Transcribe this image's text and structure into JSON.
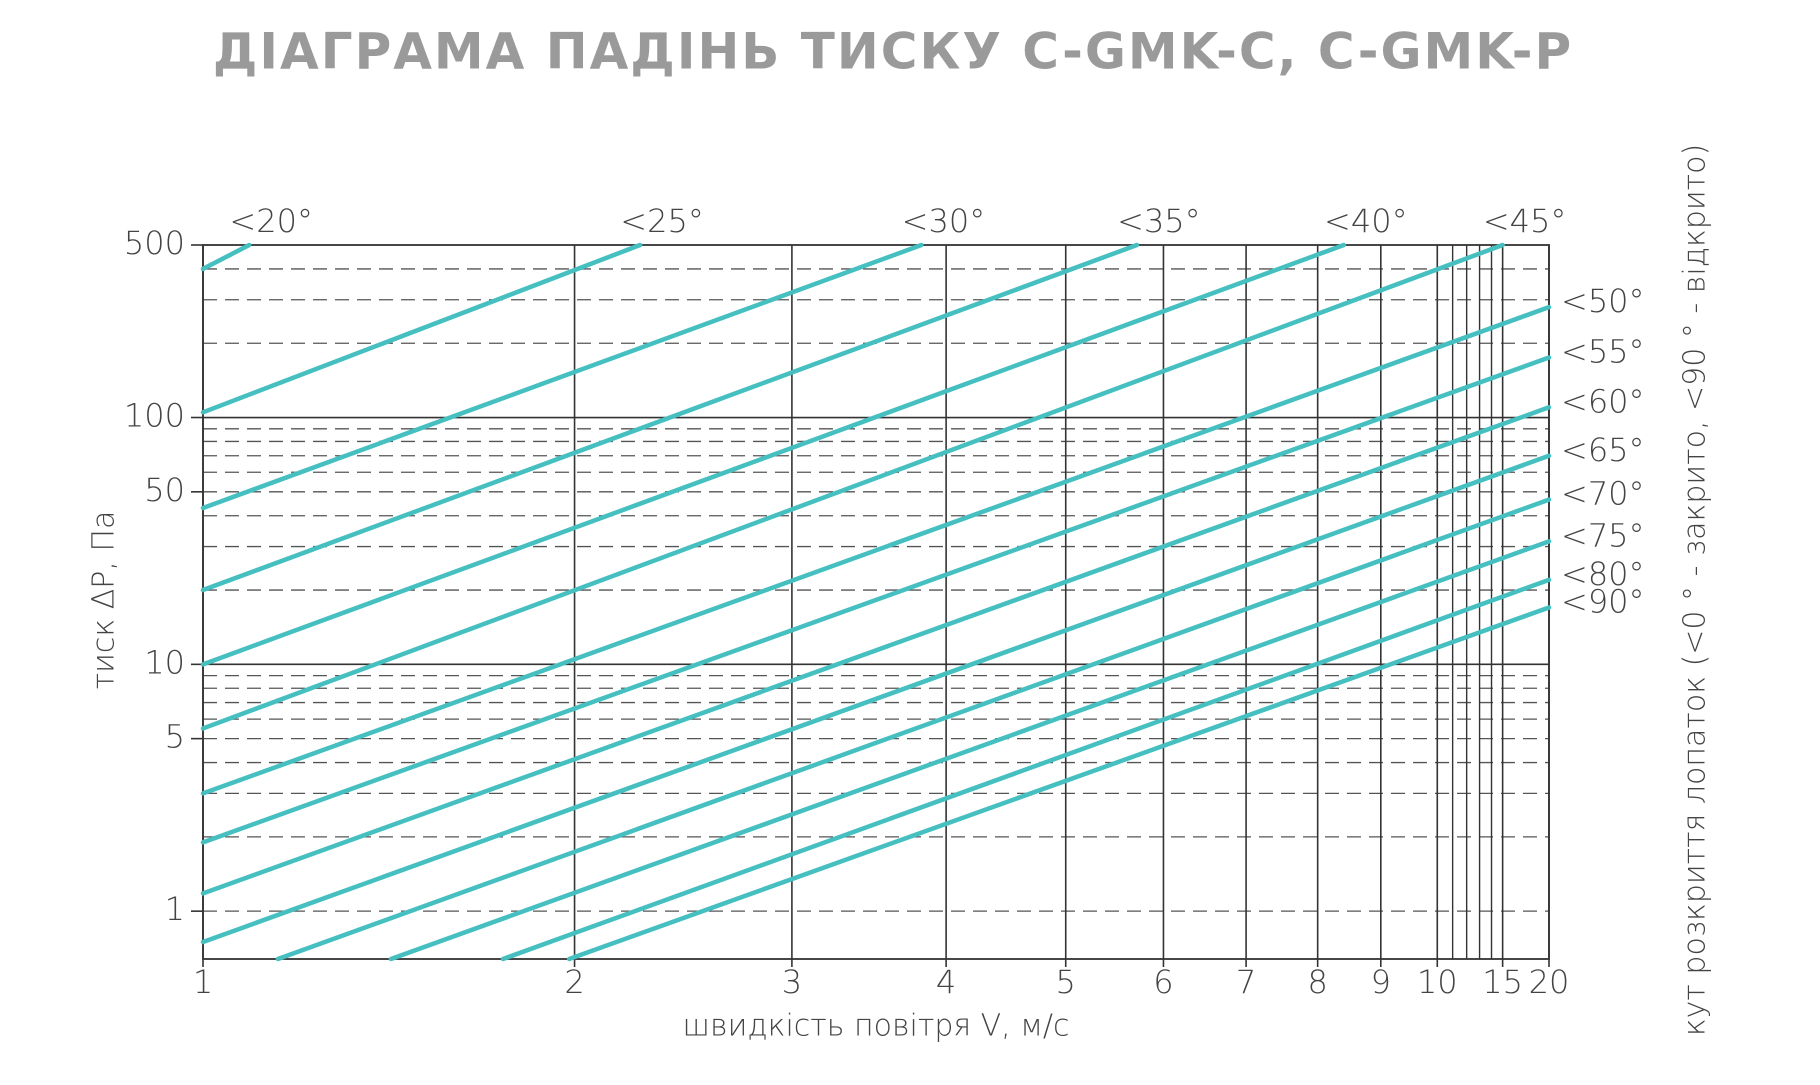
{
  "chart_data": {
    "type": "line",
    "title": "ДІАГРАМА ПАДІНЬ ТИСКУ C-GMK-C, C-GMK-P",
    "x_label": "швидкість повітря V, м/с",
    "y_label": "тиск ΔP, Па",
    "y2_label": "кут розкриття лопаток (<0 ° - закрито, <90 ° - відкрито)",
    "xscale": "log",
    "xbreak": 10,
    "yscale": "log",
    "xlim": [
      1,
      20
    ],
    "ylim": [
      0.64,
      500
    ],
    "xticks": [
      1,
      2,
      3,
      4,
      5,
      6,
      7,
      8,
      9,
      10,
      15,
      20
    ],
    "xgrid_minor": [
      11,
      12,
      13,
      14
    ],
    "yticks": [
      1,
      5,
      10,
      50,
      100,
      500
    ],
    "ygrid_solid": [
      10,
      100
    ],
    "ygrid_dashed": [
      1,
      2,
      3,
      4,
      5,
      6,
      7,
      8,
      9,
      20,
      30,
      40,
      50,
      60,
      70,
      80,
      90,
      200,
      300,
      400
    ],
    "color": "#45bfc0",
    "series": [
      {
        "name": "<20°",
        "x": [
          1,
          1.09
        ],
        "values": [
          400,
          500
        ]
      },
      {
        "name": "<25°",
        "x": [
          1,
          2.26
        ],
        "values": [
          105,
          500
        ]
      },
      {
        "name": "<30°",
        "x": [
          1,
          3.82
        ],
        "values": [
          43,
          500
        ]
      },
      {
        "name": "<35°",
        "x": [
          1,
          5.71
        ],
        "values": [
          20,
          500
        ]
      },
      {
        "name": "<40°",
        "x": [
          1,
          8.4
        ],
        "values": [
          10,
          500
        ]
      },
      {
        "name": "<45°",
        "x": [
          1,
          15
        ],
        "values": [
          5.5,
          500
        ]
      },
      {
        "name": "<50°",
        "x": [
          1,
          20
        ],
        "values": [
          3,
          280
        ]
      },
      {
        "name": "<55°",
        "x": [
          1,
          20
        ],
        "values": [
          1.9,
          175
        ]
      },
      {
        "name": "<60°",
        "x": [
          1,
          20
        ],
        "values": [
          1.18,
          110
        ]
      },
      {
        "name": "<65°",
        "x": [
          1,
          20
        ],
        "values": [
          0.75,
          70
        ]
      },
      {
        "name": "<70°",
        "x": [
          1.15,
          20
        ],
        "values": [
          0.64,
          46.5
        ]
      },
      {
        "name": "<75°",
        "x": [
          1.42,
          20
        ],
        "values": [
          0.64,
          31.5
        ]
      },
      {
        "name": "<80°",
        "x": [
          1.75,
          20
        ],
        "values": [
          0.64,
          22
        ]
      },
      {
        "name": "<90°",
        "x": [
          1.98,
          20
        ],
        "values": [
          0.64,
          17
        ]
      }
    ]
  }
}
